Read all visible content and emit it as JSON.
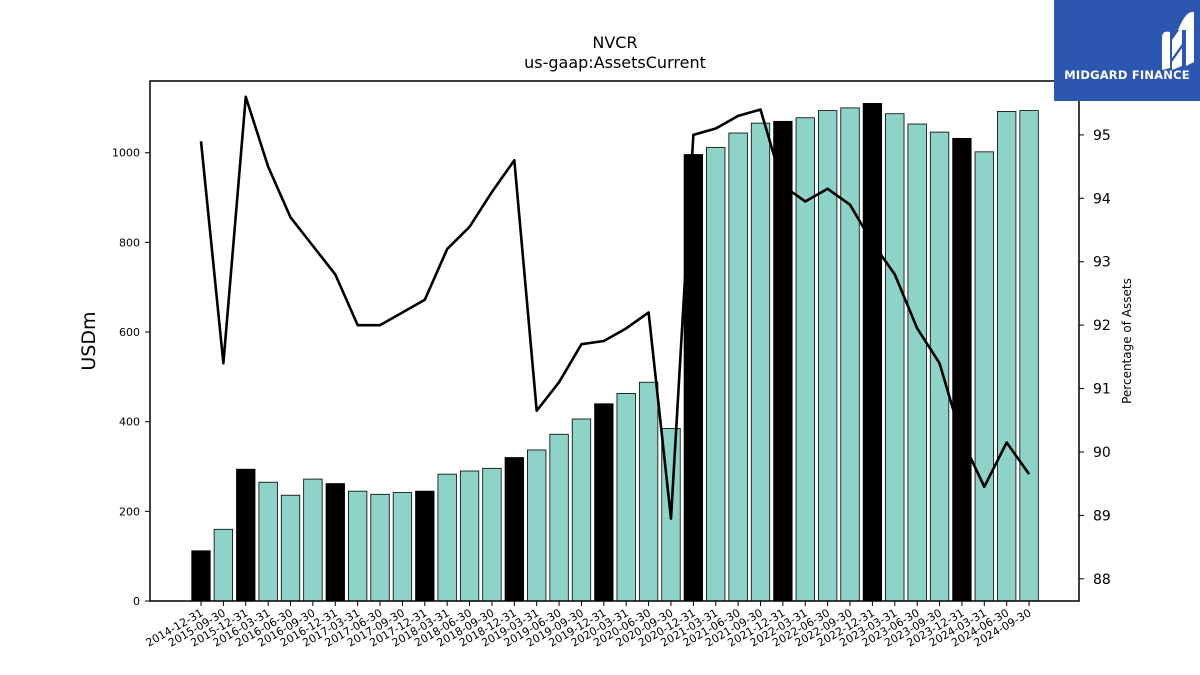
{
  "chart_data": {
    "type": "bar",
    "title": "NVCR",
    "subtitle": "us-gaap:AssetsCurrent",
    "ylabel": "USDm",
    "y2label": "Percentage of Assets",
    "ylim": [
      0,
      1160
    ],
    "y2lim": [
      87.65,
      95.85
    ],
    "yticks": [
      0,
      200,
      400,
      600,
      800,
      1000
    ],
    "y2ticks": [
      88,
      89,
      90,
      91,
      92,
      93,
      94,
      95
    ],
    "categories": [
      "2014-12-31",
      "2015-09-30",
      "2015-12-31",
      "2016-03-31",
      "2016-06-30",
      "2016-09-30",
      "2016-12-31",
      "2017-03-31",
      "2017-06-30",
      "2017-09-30",
      "2017-12-31",
      "2018-03-31",
      "2018-06-30",
      "2018-09-30",
      "2018-12-31",
      "2019-03-31",
      "2019-06-30",
      "2019-09-30",
      "2019-12-31",
      "2020-03-31",
      "2020-06-30",
      "2020-09-30",
      "2020-12-31",
      "2021-03-31",
      "2021-06-30",
      "2021-09-30",
      "2021-12-31",
      "2022-03-31",
      "2022-06-30",
      "2022-09-30",
      "2022-12-31",
      "2023-03-31",
      "2023-06-30",
      "2023-09-30",
      "2023-12-31",
      "2024-03-31",
      "2024-06-30",
      "2024-09-30"
    ],
    "series": [
      {
        "type": "bar",
        "values": [
          112,
          160,
          294,
          265,
          236,
          272,
          262,
          245,
          238,
          242,
          245,
          283,
          290,
          296,
          320,
          337,
          372,
          406,
          440,
          463,
          488,
          385,
          996,
          1012,
          1044,
          1066,
          1070,
          1078,
          1094,
          1100,
          1110,
          1087,
          1064,
          1046,
          1032,
          1002,
          1092,
          1094
        ],
        "highlight": [
          true,
          false,
          true,
          false,
          false,
          false,
          true,
          false,
          false,
          false,
          true,
          false,
          false,
          false,
          true,
          false,
          false,
          false,
          true,
          false,
          false,
          false,
          true,
          false,
          false,
          false,
          true,
          false,
          false,
          false,
          true,
          false,
          false,
          false,
          true,
          false,
          false,
          false
        ]
      },
      {
        "type": "line",
        "axis": "right",
        "values": [
          94.9,
          91.4,
          95.6,
          94.5,
          93.7,
          93.25,
          92.8,
          92.0,
          92.0,
          92.2,
          92.4,
          93.2,
          93.55,
          94.1,
          94.6,
          90.65,
          91.1,
          91.7,
          91.75,
          91.95,
          92.2,
          88.95,
          95.0,
          95.1,
          95.3,
          95.4,
          94.2,
          93.95,
          94.15,
          93.9,
          93.3,
          92.8,
          91.95,
          91.4,
          90.2,
          89.45,
          90.15,
          89.65
        ]
      }
    ],
    "colors": {
      "bar": "#8dd3c7",
      "highlight_bar": "#000000",
      "line": "#000000"
    }
  },
  "logo": {
    "text": "MIDGARD FINANCE",
    "background": "#2c57b0"
  }
}
